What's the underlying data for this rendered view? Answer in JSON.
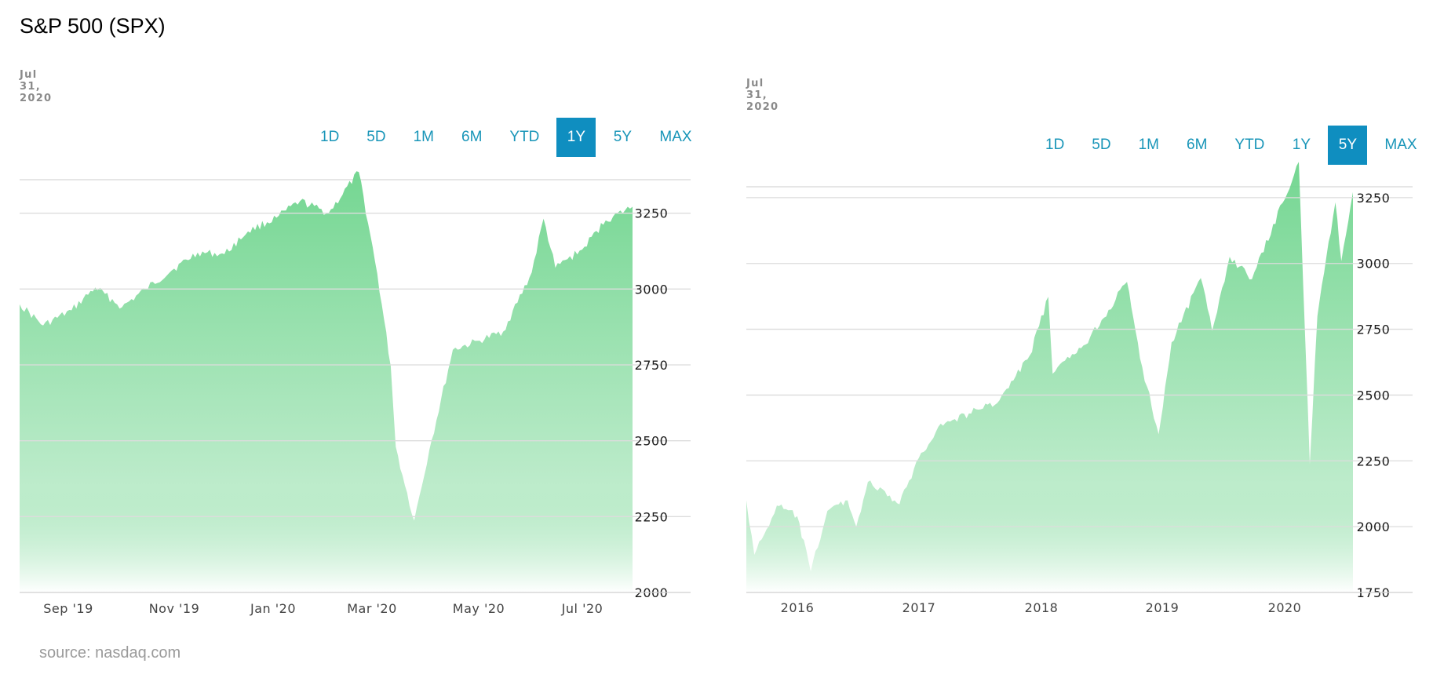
{
  "title": "S&P 500 (SPX)",
  "source": "source: nasdaq.com",
  "colors": {
    "accent": "#0f8ec0",
    "link": "#1895b8",
    "fill_top": "#6dd48c",
    "fill_bottom": "#ffffff"
  },
  "chart_data": [
    {
      "type": "area",
      "date": "Jul 31, 2020",
      "range_buttons": [
        "1D",
        "5D",
        "1M",
        "6M",
        "YTD",
        "1Y",
        "5Y",
        "MAX"
      ],
      "active_range": "1Y",
      "x_tick_labels": [
        "Sep '19",
        "Nov '19",
        "Jan '20",
        "Mar '20",
        "May '20",
        "Jul '20"
      ],
      "y_ticks": [
        2000,
        2250,
        2500,
        2750,
        3000,
        3250
      ],
      "ylim": [
        2000,
        3500
      ],
      "grid": true,
      "x": [
        "2019-08-01",
        "2019-08-15",
        "2019-09-01",
        "2019-09-15",
        "2019-10-01",
        "2019-10-15",
        "2019-11-01",
        "2019-11-15",
        "2019-12-01",
        "2019-12-15",
        "2020-01-01",
        "2020-01-15",
        "2020-02-01",
        "2020-02-19",
        "2020-03-01",
        "2020-03-09",
        "2020-03-12",
        "2020-03-16",
        "2020-03-23",
        "2020-04-01",
        "2020-04-15",
        "2020-05-01",
        "2020-05-15",
        "2020-06-01",
        "2020-06-08",
        "2020-06-15",
        "2020-07-01",
        "2020-07-15",
        "2020-07-31"
      ],
      "values": [
        2950,
        2880,
        2930,
        3005,
        2940,
        3000,
        3067,
        3120,
        3115,
        3190,
        3235,
        3290,
        3250,
        3386,
        3050,
        2746,
        2480,
        2386,
        2237,
        2470,
        2800,
        2830,
        2860,
        3055,
        3232,
        3070,
        3130,
        3226,
        3271
      ]
    },
    {
      "type": "area",
      "date": "Jul 31, 2020",
      "range_buttons": [
        "1D",
        "5D",
        "1M",
        "6M",
        "YTD",
        "1Y",
        "5Y",
        "MAX"
      ],
      "active_range": "5Y",
      "x_tick_labels": [
        "2016",
        "2017",
        "2018",
        "2019",
        "2020"
      ],
      "y_ticks": [
        1750,
        2000,
        2250,
        2500,
        2750,
        3000,
        3250
      ],
      "ylim": [
        1750,
        3500
      ],
      "grid": true,
      "x": [
        "2015-08-01",
        "2015-08-25",
        "2015-10-01",
        "2015-11-01",
        "2016-01-01",
        "2016-02-11",
        "2016-04-01",
        "2016-06-01",
        "2016-06-27",
        "2016-08-01",
        "2016-11-04",
        "2017-01-01",
        "2017-03-01",
        "2017-06-01",
        "2017-09-01",
        "2017-12-01",
        "2018-01-26",
        "2018-02-08",
        "2018-04-01",
        "2018-06-01",
        "2018-09-20",
        "2018-10-29",
        "2018-12-24",
        "2019-02-01",
        "2019-04-30",
        "2019-06-03",
        "2019-07-26",
        "2019-10-01",
        "2020-01-01",
        "2020-02-19",
        "2020-03-23",
        "2020-04-15",
        "2020-06-08",
        "2020-06-26",
        "2020-07-31"
      ],
      "values": [
        2100,
        1893,
        1990,
        2080,
        2040,
        1829,
        2060,
        2100,
        2000,
        2170,
        2085,
        2260,
        2380,
        2430,
        2480,
        2650,
        2873,
        2581,
        2640,
        2720,
        2930,
        2640,
        2351,
        2700,
        2945,
        2744,
        3025,
        2940,
        3230,
        3386,
        2237,
        2800,
        3232,
        3009,
        3271
      ]
    }
  ]
}
